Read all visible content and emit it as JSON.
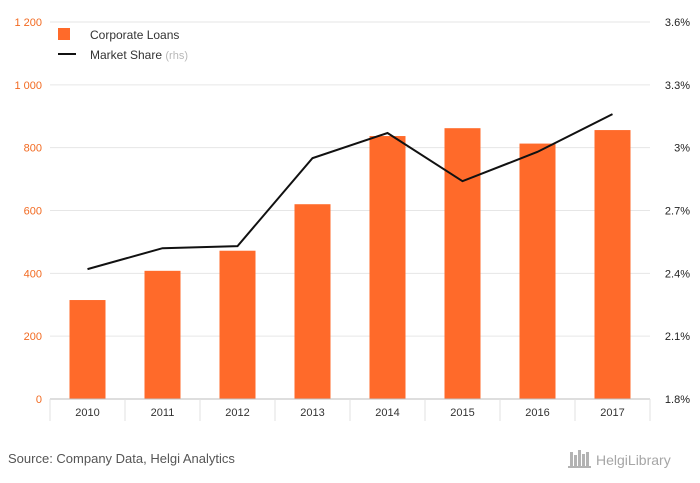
{
  "chart_data": {
    "type": "bar",
    "categories": [
      "2010",
      "2011",
      "2012",
      "2013",
      "2014",
      "2015",
      "2016",
      "2017"
    ],
    "series": [
      {
        "name": "Corporate Loans",
        "type": "bar",
        "axis": "left",
        "color": "#ff6a2a",
        "values": [
          315,
          408,
          472,
          620,
          837,
          862,
          813,
          856
        ]
      },
      {
        "name": "Market Share",
        "name_suffix": "(rhs)",
        "type": "line",
        "axis": "right",
        "color": "#111111",
        "values": [
          2.42,
          2.52,
          2.53,
          2.95,
          3.07,
          2.84,
          2.98,
          3.16
        ]
      }
    ],
    "y_left": {
      "ylim": [
        0,
        1200
      ],
      "ticks": [
        0,
        200,
        400,
        600,
        800,
        1000,
        1200
      ],
      "tick_labels": [
        "0",
        "200",
        "400",
        "600",
        "800",
        "1 000",
        "1 200"
      ],
      "color": "#f26a21"
    },
    "y_right": {
      "ylim": [
        1.8,
        3.6
      ],
      "ticks": [
        1.8,
        2.1,
        2.4,
        2.7,
        3.0,
        3.3,
        3.6
      ],
      "tick_labels": [
        "1.8%",
        "2.1%",
        "2.4%",
        "2.7%",
        "3%",
        "3.3%",
        "3.6%"
      ]
    },
    "grid": "horizontal",
    "legend": "top-left"
  },
  "source": "Source: Company Data, Helgi Analytics",
  "brand": "HelgiLibrary"
}
